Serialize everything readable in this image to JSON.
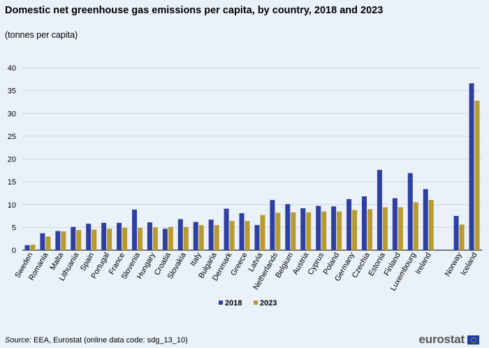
{
  "title": "Domestic net greenhouse gas emissions per capita, by country, 2018 and 2023",
  "subtitle": "(tonnes per capita)",
  "source_label": "Source:",
  "source_text": " EEA, Eurostat (online data code: sdg_13_10)",
  "logo_text": "eurostat",
  "chart_data": {
    "type": "bar",
    "title": "Domestic net greenhouse gas emissions per capita, by country, 2018 and 2023",
    "ylabel": "tonnes per capita",
    "ylim": [
      0,
      40
    ],
    "yticks": [
      0,
      5,
      10,
      15,
      20,
      25,
      30,
      35,
      40
    ],
    "grid": true,
    "legend": "bottom-center",
    "categories": [
      "Sweden",
      "Romania",
      "Malta",
      "Lithuania",
      "Spain",
      "Portugal",
      "France",
      "Slovenia",
      "Hungary",
      "Croatia",
      "Slovakia",
      "Italy",
      "Bulgaria",
      "Denmark",
      "Greece",
      "Latvia",
      "Netherlands",
      "Belgium",
      "Austria",
      "Cyprus",
      "Poland",
      "Germany",
      "Czechia",
      "Estonia",
      "Finland",
      "Luxembourg",
      "Ireland",
      "",
      "Norway",
      "Iceland"
    ],
    "series": [
      {
        "name": "2018",
        "color": "#2e3fa2",
        "values": [
          1.1,
          3.7,
          4.2,
          5.1,
          5.8,
          6.0,
          6.0,
          8.9,
          6.1,
          4.7,
          6.8,
          6.2,
          6.7,
          9.1,
          8.1,
          5.5,
          11.0,
          10.1,
          9.2,
          9.7,
          9.6,
          11.2,
          11.8,
          17.6,
          11.4,
          16.9,
          13.4,
          null,
          7.5,
          36.6
        ]
      },
      {
        "name": "2023",
        "color": "#b89a2e",
        "values": [
          1.2,
          3.0,
          4.1,
          4.4,
          4.5,
          4.7,
          4.9,
          4.9,
          5.0,
          5.1,
          5.1,
          5.5,
          5.5,
          6.4,
          6.4,
          7.7,
          8.2,
          8.3,
          8.3,
          8.5,
          8.5,
          8.8,
          9.0,
          9.4,
          9.4,
          10.5,
          11.0,
          null,
          5.6,
          32.8
        ]
      }
    ]
  }
}
